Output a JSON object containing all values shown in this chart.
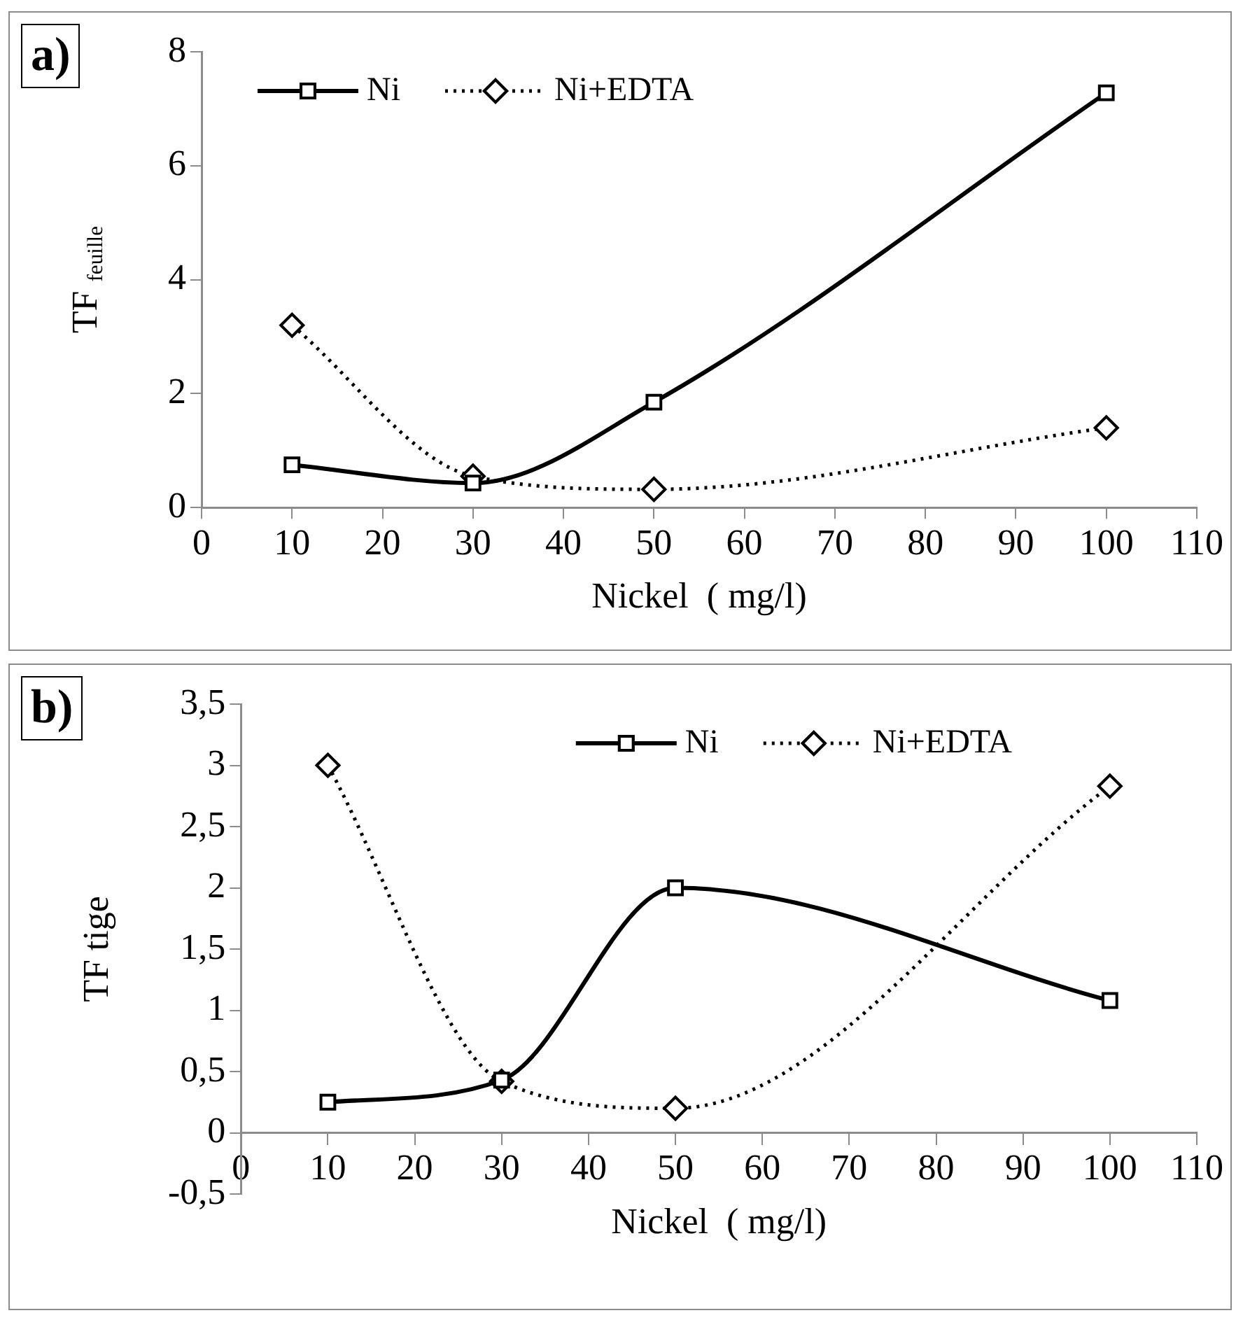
{
  "chart_data": [
    {
      "type": "line",
      "xlabel": "Nickel  ( mg/l)",
      "ylabel": "TF $_{feuille}$",
      "annotations": [
        "a)"
      ],
      "x": [
        10,
        30,
        50,
        100
      ],
      "series": [
        {
          "name": "Ni",
          "color": "#000000",
          "values": [
            0.75,
            0.43,
            1.85,
            7.28
          ],
          "marker": "square",
          "line_style": "solid"
        },
        {
          "name": "Ni+EDTA",
          "color": "#000000",
          "values": [
            3.2,
            0.55,
            0.32,
            1.4
          ],
          "marker": "diamond",
          "line_style": "dotted"
        }
      ],
      "xlim": [
        0,
        110
      ],
      "xticks": [
        0,
        10,
        20,
        30,
        40,
        50,
        60,
        70,
        80,
        90,
        100,
        110
      ],
      "ylim": [
        0,
        8
      ],
      "yticks": [
        0,
        2,
        4,
        6,
        8
      ],
      "grid": false,
      "legend": "top"
    },
    {
      "type": "line",
      "xlabel": "Nickel  ( mg/l)",
      "ylabel": "TF tige",
      "annotations": [
        "b)"
      ],
      "x": [
        10,
        30,
        50,
        100
      ],
      "series": [
        {
          "name": "Ni",
          "color": "#000000",
          "values": [
            0.25,
            0.43,
            2.0,
            1.08
          ],
          "marker": "square",
          "line_style": "solid"
        },
        {
          "name": "Ni+EDTA",
          "color": "#000000",
          "values": [
            3.0,
            0.42,
            0.2,
            2.83
          ],
          "marker": "diamond",
          "line_style": "dotted"
        }
      ],
      "xlim": [
        0,
        110
      ],
      "xticks": [
        0,
        10,
        20,
        30,
        40,
        50,
        60,
        70,
        80,
        90,
        100,
        110
      ],
      "ylim": [
        -0.5,
        3.5
      ],
      "yticks": [
        {
          "value": -0.5,
          "label": "-0,5"
        },
        0,
        {
          "value": 0.5,
          "label": "0,5"
        },
        1,
        {
          "value": 1.5,
          "label": "1,5"
        },
        2,
        {
          "value": 2.5,
          "label": "2,5"
        },
        3,
        {
          "value": 3.5,
          "label": "3,5"
        }
      ],
      "grid": false,
      "legend": "top right"
    }
  ]
}
